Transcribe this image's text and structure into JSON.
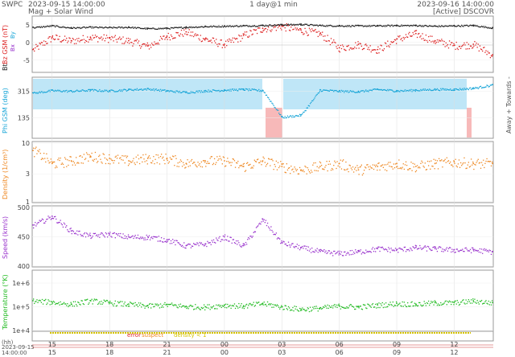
{
  "header": {
    "org": "SWPC",
    "start_time": "2023-09-15 14:00:00",
    "subtitle": "Mag + Solar Wind",
    "span": "1 day@1 min",
    "end_time": "2023-09-16 14:00:00",
    "source": "[Active] DSCOVR"
  },
  "colors": {
    "bt": "#222222",
    "bz": "#dd2222",
    "phi": "#1aa6d8",
    "phi_band_toward": "#bfe6f7",
    "phi_band_away": "#f7b9b9",
    "density": "#ee8822",
    "speed": "#9933cc",
    "temperature": "#22bb22",
    "status_line": "#d4c200",
    "grid": "#dddddd"
  },
  "x_axis": {
    "hour_ticks": [
      "15",
      "18",
      "21",
      "00",
      "03",
      "06",
      "09",
      "12"
    ],
    "bottom_label_hh": "(hh)",
    "bottom_label_date": "2023-09-15",
    "bottom_label_time": "14:00:00"
  },
  "status_legend": {
    "error": "error",
    "suspect": "suspect",
    "density_lt1": "density < 1"
  },
  "chart_data": [
    {
      "type": "scatter",
      "id": "mag",
      "ylabel_parts": [
        "Bt",
        "Bz GSM (nT)"
      ],
      "side_labels": [
        "Bx",
        "By"
      ],
      "y_ticks": [
        -5,
        0,
        5
      ],
      "ylim": [
        -8,
        7
      ],
      "series": [
        {
          "name": "Bt",
          "x": [
            0,
            1,
            2,
            3,
            4,
            5,
            6,
            7,
            8,
            9,
            10,
            11,
            12,
            13,
            14,
            15,
            16,
            17,
            18,
            19,
            20,
            21,
            22,
            23,
            24
          ],
          "y": [
            4.3,
            4.8,
            4.2,
            4.4,
            4.3,
            4.4,
            4.0,
            4.1,
            4.4,
            4.6,
            4.7,
            4.8,
            4.9,
            5.1,
            5.2,
            4.9,
            4.8,
            4.8,
            4.8,
            4.9,
            4.9,
            4.7,
            4.8,
            4.9,
            4.2
          ]
        },
        {
          "name": "Bz GSM",
          "x": [
            0,
            1,
            2,
            3,
            4,
            5,
            6,
            7,
            8,
            9,
            10,
            11,
            12,
            13,
            14,
            15,
            16,
            17,
            18,
            19,
            20,
            21,
            22,
            23,
            24
          ],
          "y": [
            -2.0,
            1.5,
            0.5,
            1.5,
            1.2,
            0.5,
            -1.0,
            1.8,
            3.0,
            1.0,
            -0.5,
            2.0,
            4.0,
            4.6,
            3.5,
            2.5,
            -1.5,
            -0.5,
            -2.0,
            1.0,
            2.5,
            0.5,
            -0.8,
            -0.5,
            -3.5
          ]
        }
      ]
    },
    {
      "type": "scatter",
      "id": "phi",
      "ylabel": "Phi GSM (deg)",
      "right_label": "Away + Towards -",
      "y_ticks": [
        135,
        315
      ],
      "ylim": [
        0,
        400
      ],
      "x": [
        0,
        1,
        2,
        3,
        4,
        5,
        6,
        7,
        8,
        9,
        10,
        11,
        12,
        13,
        14,
        15,
        16,
        17,
        18,
        19,
        20,
        21,
        22,
        23,
        24
      ],
      "y": [
        305,
        322,
        318,
        325,
        320,
        328,
        333,
        320,
        310,
        320,
        325,
        330,
        322,
        140,
        155,
        325,
        318,
        315,
        330,
        320,
        325,
        330,
        330,
        338,
        360
      ]
    },
    {
      "type": "scatter",
      "id": "density",
      "ylabel": "Density (1/cm³)",
      "y_ticks": [
        1,
        3,
        10
      ],
      "ylim": [
        1,
        10
      ],
      "log_scale": true,
      "x": [
        0,
        1,
        2,
        3,
        4,
        5,
        6,
        7,
        8,
        9,
        10,
        11,
        12,
        13,
        14,
        15,
        16,
        17,
        18,
        19,
        20,
        21,
        22,
        23,
        24
      ],
      "y": [
        7.5,
        4.5,
        5.0,
        6.0,
        5.5,
        5.0,
        5.5,
        5.5,
        4.5,
        5.0,
        5.0,
        4.0,
        5.0,
        4.0,
        3.5,
        4.0,
        4.5,
        3.5,
        4.0,
        4.5,
        4.0,
        4.5,
        4.8,
        4.5,
        4.5
      ]
    },
    {
      "type": "scatter",
      "id": "speed",
      "ylabel": "Speed (km/s)",
      "y_ticks": [
        400,
        450,
        500
      ],
      "ylim": [
        400,
        500
      ],
      "x": [
        0,
        1,
        2,
        3,
        4,
        5,
        6,
        7,
        8,
        9,
        10,
        11,
        12,
        13,
        14,
        15,
        16,
        17,
        18,
        19,
        20,
        21,
        22,
        23,
        24
      ],
      "y": [
        470,
        485,
        460,
        452,
        455,
        450,
        450,
        445,
        435,
        438,
        450,
        435,
        480,
        440,
        432,
        425,
        422,
        425,
        430,
        428,
        432,
        430,
        428,
        428,
        425
      ]
    },
    {
      "type": "scatter",
      "id": "temperature",
      "ylabel": "Temperature (°K)",
      "y_ticks": [
        "1e+4",
        "1e+5",
        "1e+6"
      ],
      "ylim": [
        10000,
        3000000
      ],
      "log_scale": true,
      "x": [
        0,
        1,
        2,
        3,
        4,
        5,
        6,
        7,
        8,
        9,
        10,
        11,
        12,
        13,
        14,
        15,
        16,
        17,
        18,
        19,
        20,
        21,
        22,
        23,
        24
      ],
      "y": [
        180000,
        160000,
        130000,
        180000,
        150000,
        130000,
        110000,
        125000,
        105000,
        100000,
        120000,
        110000,
        140000,
        100000,
        80000,
        90000,
        110000,
        100000,
        120000,
        140000,
        130000,
        150000,
        150000,
        180000,
        150000
      ]
    }
  ]
}
